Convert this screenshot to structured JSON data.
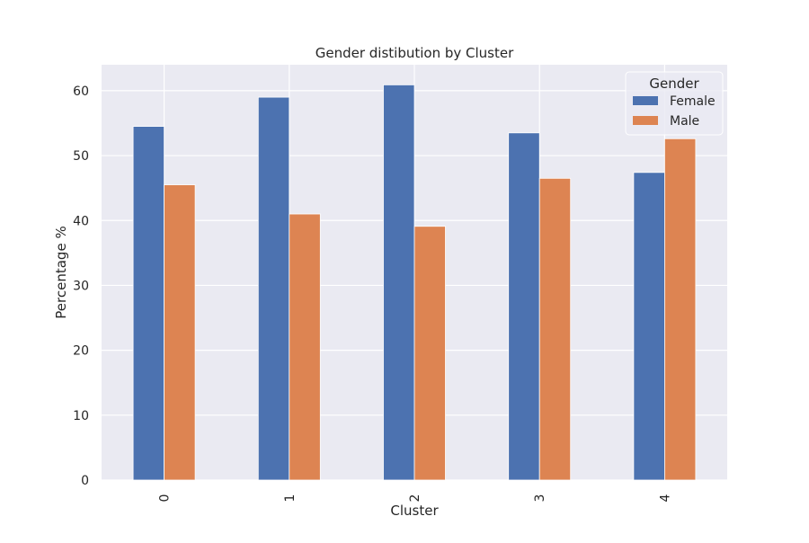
{
  "chart_data": {
    "type": "bar",
    "title": "Gender distibution by Cluster",
    "xlabel": "Cluster",
    "ylabel": "Percentage %",
    "categories": [
      "0",
      "1",
      "2",
      "3",
      "4"
    ],
    "series": [
      {
        "name": "Female",
        "values": [
          54.5,
          59.0,
          60.9,
          53.5,
          47.4
        ],
        "color": "#4c72b0"
      },
      {
        "name": "Male",
        "values": [
          45.5,
          41.0,
          39.1,
          46.5,
          52.6
        ],
        "color": "#dd8452"
      }
    ],
    "ylim": [
      0,
      64
    ],
    "yticks": [
      0,
      10,
      20,
      30,
      40,
      50,
      60
    ],
    "grid": true,
    "legend": {
      "title": "Gender",
      "placement": "top-right"
    },
    "background_color": "#eaeaf2",
    "grid_color": "#ffffff",
    "xtick_rotation": "vertical"
  }
}
